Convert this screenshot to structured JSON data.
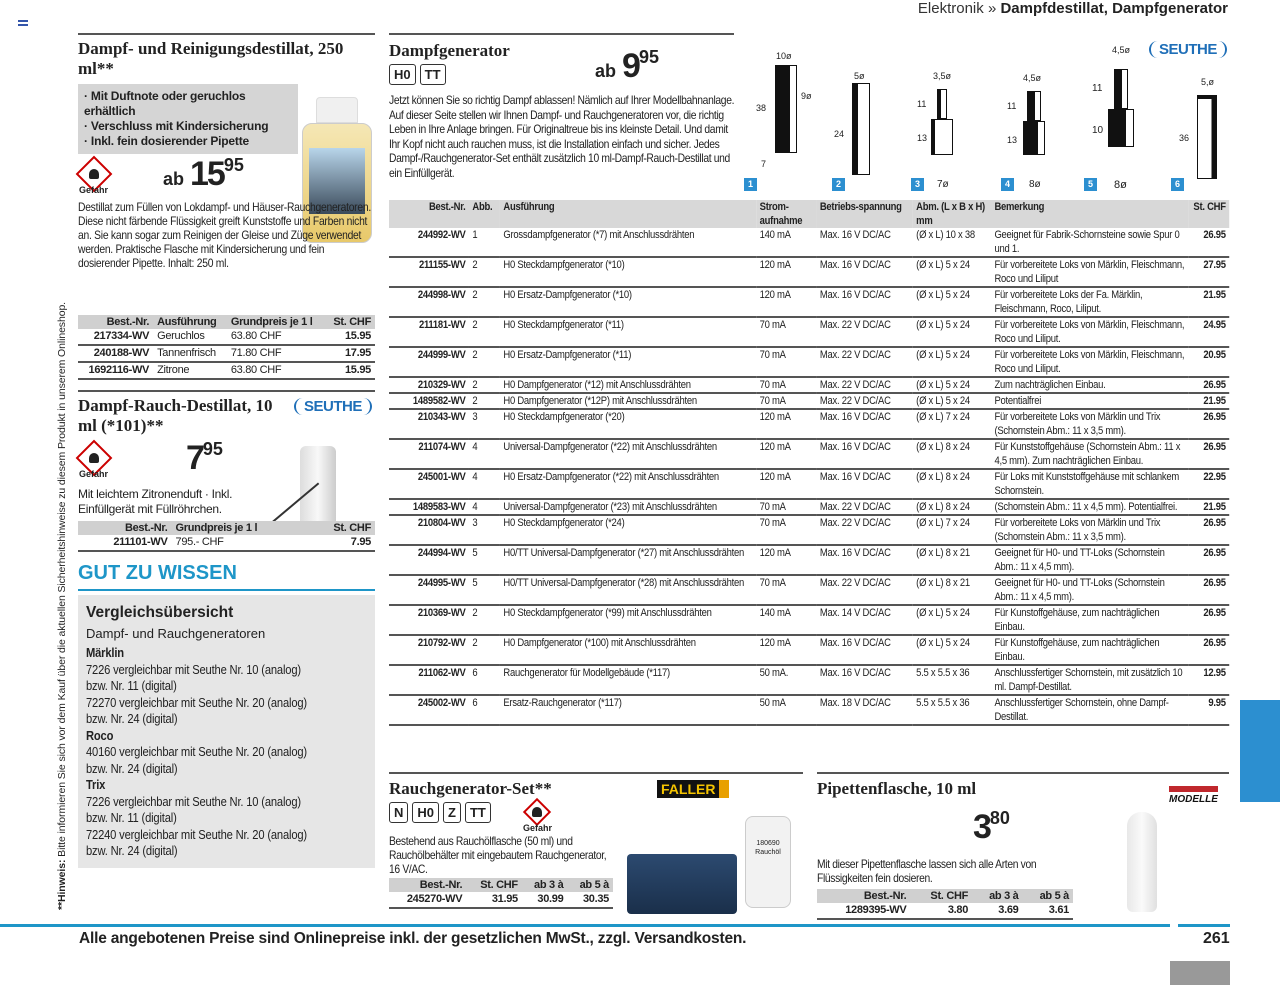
{
  "header": {
    "section": "Elektronik",
    "sep": "»",
    "title": "Dampfdestillat, Dampfgenerator"
  },
  "side_note": {
    "label": "**Hinweis:",
    "text": "Bitte informieren Sie sich vor dem Kauf über die aktuellen Sicherheitshinweise zu diesem Produkt in unserem Onlineshop."
  },
  "hazard_label": "Gefahr",
  "product1": {
    "title": "Dampf- und Reinigungsdestillat, 250 ml**",
    "bullets": [
      "· Mit Duftnote oder geruchlos erhältlich",
      "· Verschluss mit Kindersicherung",
      "· Inkl. fein dosierender Pipette"
    ],
    "price_prefix": "ab",
    "price_main": "15",
    "price_cents": "95",
    "description": "Destillat zum Füllen von Lokdampf- und Häuser-Rauchgeneratoren. Diese nicht färbende Flüssigkeit greift Kunststoffe und Farben nicht an. Sie kann sogar zum Reinigen der Gleise und Züge verwendet werden. Praktische Flasche mit Kindersicherung und fein dosierender Pipette. Inhalt: 250 ml.",
    "table": {
      "headers": [
        "Best.-Nr.",
        "Ausführung",
        "Grundpreis je 1 l",
        "St. CHF"
      ],
      "rows": [
        [
          "217334-WV",
          "Geruchlos",
          "63.80 CHF",
          "15.95"
        ],
        [
          "240188-WV",
          "Tannenfrisch",
          "71.80 CHF",
          "17.95"
        ],
        [
          "1692116-WV",
          "Zitrone",
          "63.80 CHF",
          "15.95"
        ]
      ]
    }
  },
  "product2": {
    "title": "Dampf-Rauch-Destillat, 10 ml (*101)**",
    "brand": "SEUTHE",
    "price_main": "7",
    "price_cents": "95",
    "description": "Mit leichtem Zitronenduft · Inkl. Einfüllgerät mit Füllröhrchen.",
    "table": {
      "headers": [
        "Best.-Nr.",
        "Grundpreis je 1 l",
        "St. CHF"
      ],
      "rows": [
        [
          "211101-WV",
          "795.- CHF",
          "7.95"
        ]
      ]
    }
  },
  "gut_zu_wissen": {
    "heading": "GUT ZU WISSEN",
    "title": "Vergleichsübersicht",
    "subtitle": "Dampf- und Rauchgeneratoren",
    "groups": [
      {
        "brand": "Märklin",
        "lines": [
          "7226 vergleichbar mit Seuthe Nr. 10 (analog)",
          "bzw. Nr. 11 (digital)",
          "72270 vergleichbar mit Seuthe Nr. 20 (analog)",
          "bzw. Nr. 24 (digital)"
        ]
      },
      {
        "brand": "Roco",
        "lines": [
          "40160 vergleichbar mit Seuthe Nr. 20 (analog)",
          "bzw. Nr. 24 (digital)"
        ]
      },
      {
        "brand": "Trix",
        "lines": [
          "7226 vergleichbar mit Seuthe Nr. 10 (analog)",
          "bzw. Nr. 11 (digital)",
          "72240 vergleichbar mit Seuthe Nr. 20 (analog)",
          "bzw. Nr. 24 (digital)"
        ]
      }
    ]
  },
  "dampfgenerator": {
    "title": "Dampfgenerator",
    "gauges": [
      "H0",
      "TT"
    ],
    "brand": "SEUTHE",
    "price_prefix": "ab",
    "price_main": "9",
    "price_cents": "95",
    "description": "Jetzt können Sie so richtig Dampf ablassen! Nämlich auf Ihrer Modellbahnanlage. Auf dieser Seite stellen wir Ihnen Dampf- und Rauchgeneratoren vor, die richtig Leben in Ihre Anlage bringen. Für Originaltreue bis ins kleinste Detail. Und damit Ihr Kopf nicht auch rauchen muss, ist die Installation einfach und sicher. Jedes Dampf-/Rauchgenerator-Set enthält zusätzlich 10 ml-Dampf-Rauch-Destillat und ein Einfüllgerät.",
    "figures": [
      {
        "n": "1",
        "dims": [
          "10ø",
          "38",
          "9ø",
          "7"
        ]
      },
      {
        "n": "2",
        "dims": [
          "5ø",
          "24"
        ]
      },
      {
        "n": "3",
        "dims": [
          "3,5ø",
          "11",
          "13",
          "7ø"
        ]
      },
      {
        "n": "4",
        "dims": [
          "4,5ø",
          "11",
          "13",
          "8ø"
        ]
      },
      {
        "n": "5",
        "dims": [
          "4,5ø",
          "11",
          "10",
          "8ø"
        ]
      },
      {
        "n": "6",
        "dims": [
          "5,ø",
          "36"
        ]
      }
    ],
    "table": {
      "headers": [
        "Best.-Nr.",
        "Abb.",
        "Ausführung",
        "Strom-aufnahme",
        "Betriebs-spannung",
        "Abm. (L x B x H) mm",
        "Bemerkung",
        "St. CHF"
      ],
      "rows": [
        [
          "244992-WV",
          "1",
          "Grossdampfgenerator (*7) mit Anschlussdrähten",
          "140 mA",
          "Max. 16 V DC/AC",
          "(Ø x L) 10 x 38",
          "Geeignet für Fabrik-Schornsteine sowie Spur 0 und 1.",
          "26.95"
        ],
        [
          "211155-WV",
          "2",
          "H0 Steckdampfgenerator (*10)",
          "120 mA",
          "Max. 16 V DC/AC",
          "(Ø x L) 5 x 24",
          "Für vorbereitete Loks von Märklin, Fleischmann, Roco und Liliput",
          "27.95"
        ],
        [
          "244998-WV",
          "2",
          "H0 Ersatz-Dampfgenerator (*10)",
          "120 mA",
          "Max. 16 V DC/AC",
          "(Ø x L) 5 x 24",
          "Für vorbereitete Loks der Fa. Märklin, Fleischmann, Roco, Liliput.",
          "21.95"
        ],
        [
          "211181-WV",
          "2",
          "H0 Steckdampfgenerator (*11)",
          "70 mA",
          "Max. 22 V DC/AC",
          "(Ø x L) 5 x 24",
          "Für vorbereitete Loks von Märklin, Fleischmann, Roco und Liliput.",
          "24.95"
        ],
        [
          "244999-WV",
          "2",
          "H0 Ersatz-Dampfgenerator (*11)",
          "70 mA",
          "Max. 22 V DC/AC",
          "(Ø x L) 5 x 24",
          "Für vorbereitete Loks von Märklin, Fleischmann, Roco und Liliput.",
          "20.95"
        ],
        [
          "210329-WV",
          "2",
          "H0 Dampfgenerator (*12) mit Anschlussdrähten",
          "70 mA",
          "Max. 22 V DC/AC",
          "(Ø x L) 5 x 24",
          "Zum nachträglichen Einbau.",
          "26.95"
        ],
        [
          "1489582-WV",
          "2",
          "H0 Dampfgenerator (*12P) mit Anschlussdrähten",
          "70 mA",
          "Max. 22 V DC/AC",
          "(Ø x L) 5 x 24",
          "Potentialfrei",
          "21.95"
        ],
        [
          "210343-WV",
          "3",
          "H0 Steckdampfgenerator (*20)",
          "120 mA",
          "Max. 16 V DC/AC",
          "(Ø x L) 7 x 24",
          "Für vorbereitete Loks von Märklin und Trix (Schornstein Abm.: 11 x 3,5 mm).",
          "26.95"
        ],
        [
          "211074-WV",
          "4",
          "Universal-Dampfgenerator (*22) mit Anschlussdrähten",
          "120 mA",
          "Max. 16 V DC/AC",
          "(Ø x L) 8 x 24",
          "Für Kunststoffgehäuse (Schornstein Abm.: 11 x 4,5 mm). Zum nachträglichen Einbau.",
          "26.95"
        ],
        [
          "245001-WV",
          "4",
          "H0 Ersatz-Dampfgenerator (*22) mit Anschlussdrähten",
          "120 mA",
          "Max. 16 V DC/AC",
          "(Ø x L) 8 x 24",
          "Für Loks mit Kunststoffgehäuse mit schlankem Schornstein.",
          "22.95"
        ],
        [
          "1489583-WV",
          "4",
          "Universal-Dampfgenerator (*23) mit Anschlussdrähten",
          "70 mA",
          "Max. 22 V DC/AC",
          "(Ø x L) 8 x 24",
          "(Schornstein Abm.: 11 x 4,5 mm). Potentialfrei.",
          "21.95"
        ],
        [
          "210804-WV",
          "3",
          "H0 Steckdampfgenerator (*24)",
          "70 mA",
          "Max. 22 V DC/AC",
          "(Ø x L) 7 x 24",
          "Für vorbereitete Loks von Märklin und Trix (Schornstein Abm.: 11 x 3,5 mm).",
          "26.95"
        ],
        [
          "244994-WV",
          "5",
          "H0/TT Universal-Dampfgenerator (*27) mit Anschlussdrähten",
          "120 mA",
          "Max. 16 V DC/AC",
          "(Ø x L) 8 x 21",
          "Geeignet für H0- und TT-Loks (Schornstein Abm.: 11 x 4,5 mm).",
          "26.95"
        ],
        [
          "244995-WV",
          "5",
          "H0/TT Universal-Dampfgenerator (*28) mit Anschlussdrähten",
          "70 mA",
          "Max. 22 V DC/AC",
          "(Ø x L) 8 x 21",
          "Geeignet für H0- und TT-Loks (Schornstein Abm.: 11 x 4,5 mm).",
          "26.95"
        ],
        [
          "210369-WV",
          "2",
          "H0 Steckdampfgenerator (*99) mit Anschlussdrähten",
          "140 mA",
          "Max. 14 V DC/AC",
          "(Ø x L) 5 x 24",
          "Für Kunstoffgehäuse, zum nachträglichen Einbau.",
          "26.95"
        ],
        [
          "210792-WV",
          "2",
          "H0 Dampfgenerator (*100) mit Anschlussdrähten",
          "120 mA",
          "Max. 16 V DC/AC",
          "(Ø x L) 5 x 24",
          "Für Kunstoffgehäuse, zum nachträglichen Einbau.",
          "26.95"
        ],
        [
          "211062-WV",
          "6",
          "Rauchgenerator für Modellgebäude (*117)",
          "50 mA.",
          "Max. 16 V DC/AC",
          "5.5 x 5.5 x 36",
          "Anschlussfertiger Schornstein, mit zusätzlich 10 ml. Dampf-Destillat.",
          "12.95"
        ],
        [
          "245002-WV",
          "6",
          "Ersatz-Rauchgenerator (*117)",
          "50 mA",
          "Max. 18 V DC/AC",
          "5.5 x 5.5 x 36",
          "Anschlussfertiger Schornstein, ohne Dampf-Destillat.",
          "9.95"
        ]
      ]
    }
  },
  "rauch_set": {
    "title": "Rauchgenerator-Set**",
    "brand": "FALLER",
    "gauges": [
      "N",
      "H0",
      "Z",
      "TT"
    ],
    "description": "Bestehend aus Rauchölflasche (50 ml) und Rauchölbehälter mit eingebautem Rauchgenerator, 16 V/AC.",
    "bottle_label": "180690 Rauchöl",
    "table": {
      "headers": [
        "Best.-Nr.",
        "St. CHF",
        "ab 3 à",
        "ab 5 à"
      ],
      "rows": [
        [
          "245270-WV",
          "31.95",
          "30.99",
          "30.35"
        ]
      ]
    }
  },
  "pipette": {
    "title": "Pipettenflasche, 10 ml",
    "brand": "MODELLE",
    "price_main": "3",
    "price_cents": "80",
    "description": "Mit dieser Pipettenflasche lassen sich alle Arten von Flüssigkeiten fein dosieren.",
    "table": {
      "headers": [
        "Best.-Nr.",
        "St. CHF",
        "ab 3 à",
        "ab 5 à"
      ],
      "rows": [
        [
          "1289395-WV",
          "3.80",
          "3.69",
          "3.61"
        ]
      ]
    }
  },
  "footer": {
    "text": "Alle angebotenen Preise sind Onlinepreise inkl. der gesetzlichen MwSt., zzgl. Versandkosten.",
    "page": "261"
  },
  "colors": {
    "accent": "#1e96c8",
    "seuthe": "#1f6fb8",
    "tab": "#2c8fd0"
  }
}
